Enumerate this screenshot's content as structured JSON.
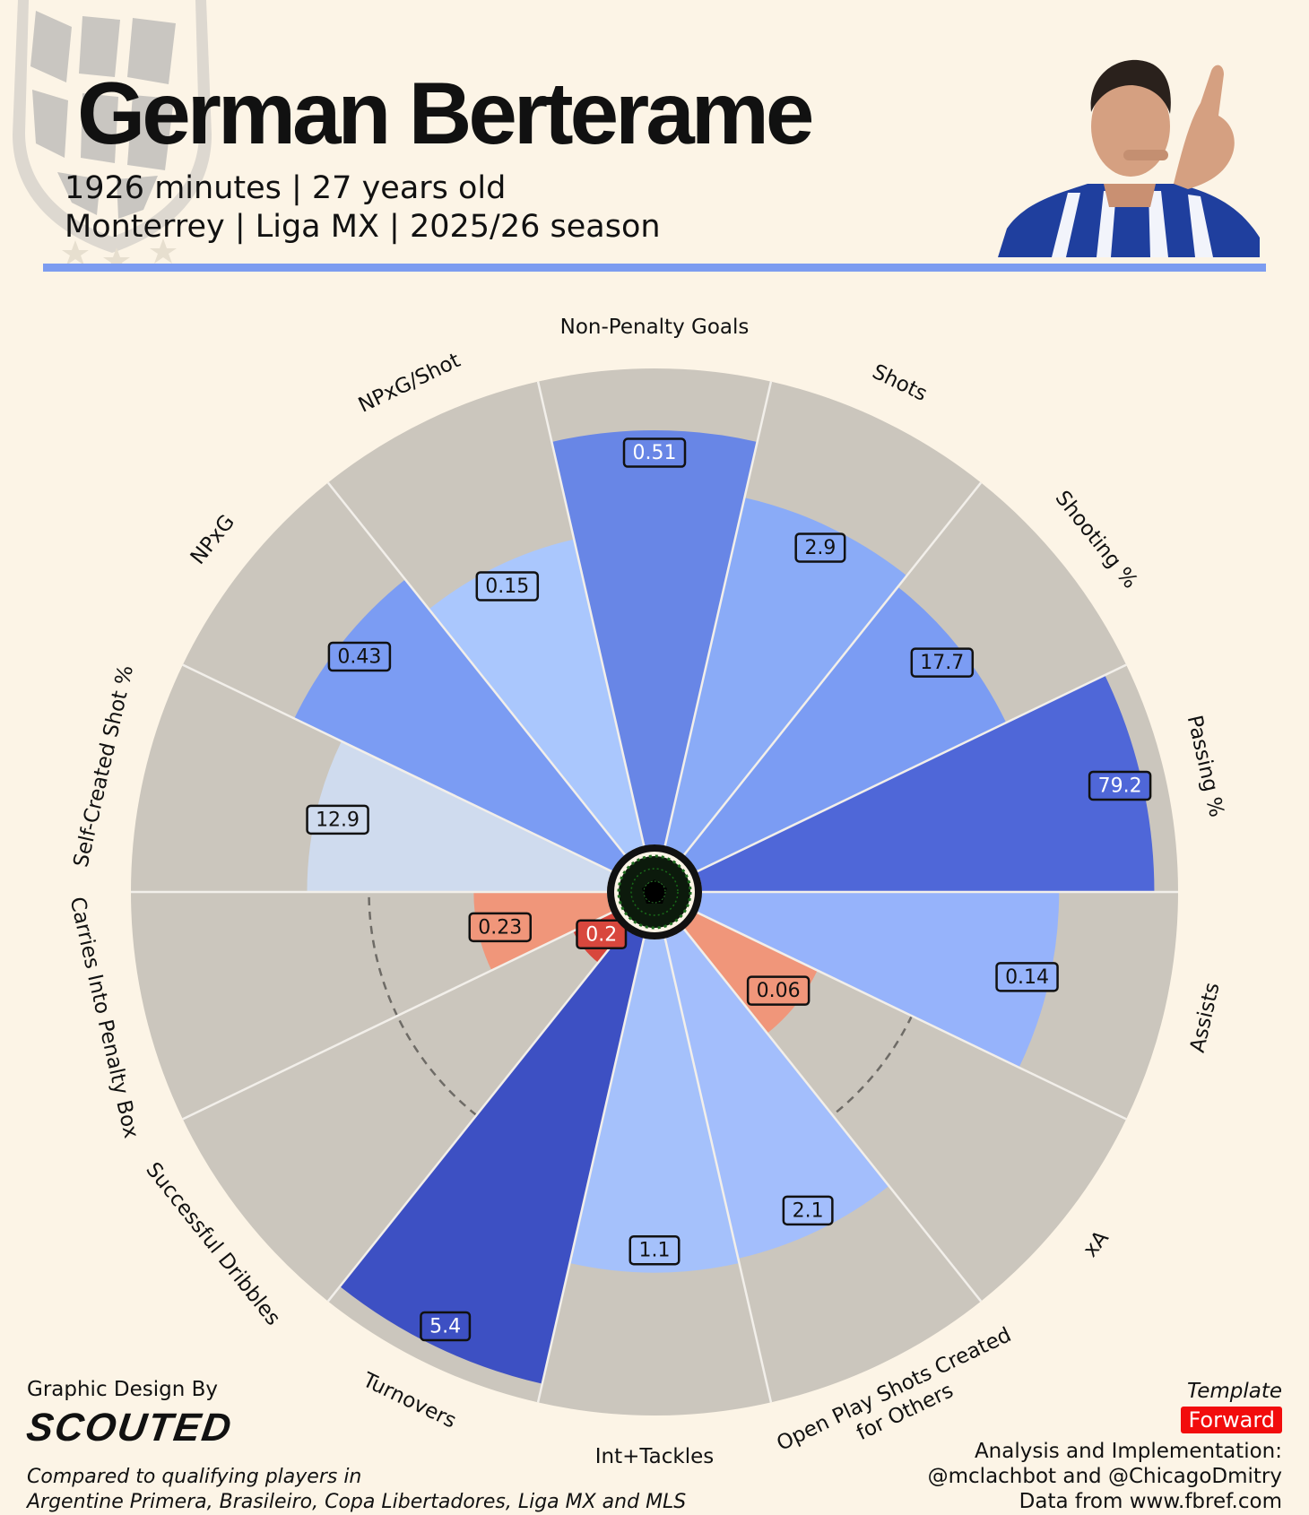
{
  "header": {
    "player_name": "German Berterame",
    "line1": "1926 minutes | 27 years old",
    "line2": "Monterrey | Liga MX | 2025/26 season"
  },
  "chart_data": {
    "type": "pizza",
    "max_percentile": 100,
    "reference_ring": 50,
    "categories": [
      {
        "label": "Non-Penalty Goals",
        "value": "0.51",
        "percentile": 87,
        "color": "#6886e6"
      },
      {
        "label": "Shots",
        "value": "2.9",
        "percentile": 75,
        "color": "#8aabf7"
      },
      {
        "label": "Shooting %",
        "value": "17.7",
        "percentile": 72,
        "color": "#7b9cf3"
      },
      {
        "label": "Passing %",
        "value": "79.2",
        "percentile": 95,
        "color": "#4f67d8"
      },
      {
        "label": "Assists",
        "value": "0.14",
        "percentile": 75,
        "color": "#96b3fb"
      },
      {
        "label": "xA",
        "value": "0.06",
        "percentile": 28,
        "color": "#f0967a"
      },
      {
        "label": "Open Play Shots Created\nfor Others",
        "value": "2.1",
        "percentile": 69,
        "color": "#a3befc"
      },
      {
        "label": "Int+Tackles",
        "value": "1.1",
        "percentile": 70,
        "color": "#a5c1fb"
      },
      {
        "label": "Turnovers",
        "value": "5.4",
        "percentile": 96,
        "color": "#3d50c3"
      },
      {
        "label": "Successful Dribbles",
        "value": "0.2",
        "percentile": 9,
        "color": "#d8473d"
      },
      {
        "label": "Carries Into Penalty Box",
        "value": "0.23",
        "percentile": 28,
        "color": "#f0967a"
      },
      {
        "label": "Self-Created Shot %",
        "value": "12.9",
        "percentile": 63,
        "color": "#cfdbee"
      },
      {
        "label": "NPxG",
        "value": "0.43",
        "percentile": 74,
        "color": "#7b9cf3"
      },
      {
        "label": "NPxG/Shot",
        "value": "0.15",
        "percentile": 66,
        "color": "#aac7fd"
      }
    ],
    "colors": {
      "background": "#fcf4e6",
      "slice_background": "#cbc6bd",
      "divider": "#f2efea",
      "accent": "#7c9cf0"
    }
  },
  "footer": {
    "credit_label": "Graphic Design By",
    "brand": "SCOUTED",
    "compare_line1": "Compared to qualifying players in",
    "compare_line2": "Argentine Primera, Brasileiro, Copa Libertadores, Liga MX and MLS",
    "template_label": "Template",
    "template_value": "Forward",
    "analysis_line1": "Analysis and Implementation:",
    "analysis_line2": "@mclachbot and @ChicagoDmitry",
    "analysis_line3": "Data from www.fbref.com"
  },
  "icons": {
    "crest": "monterrey-crest-icon",
    "ball": "soccer-ball-icon",
    "photo": "player-photo"
  }
}
